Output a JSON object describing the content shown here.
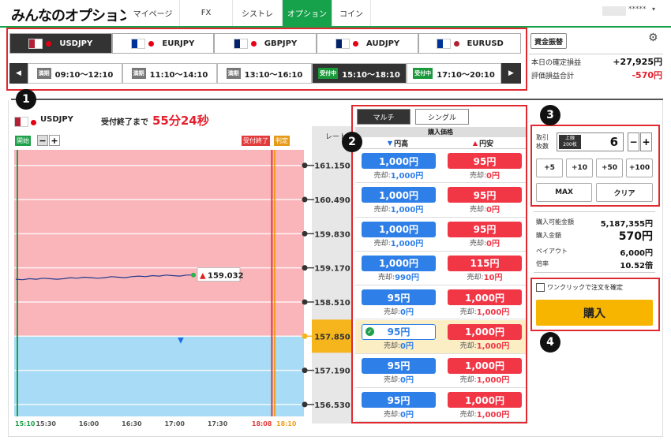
{
  "header": {
    "logo": "みんなのオプション",
    "nav": [
      "マイページ",
      "FX",
      "シストレ",
      "オプション",
      "コイン"
    ],
    "active_nav": 3,
    "user": "*****"
  },
  "currency_tabs": {
    "items": [
      "USDJPY",
      "EURJPY",
      "GBPJPY",
      "AUDJPY",
      "EURUSD"
    ],
    "active": 0
  },
  "time_slots": {
    "active": 3,
    "items": [
      {
        "status": "満期",
        "time": "09:10〜12:10"
      },
      {
        "status": "満期",
        "time": "11:10〜14:10"
      },
      {
        "status": "満期",
        "time": "13:10〜16:10"
      },
      {
        "status": "受付中",
        "time": "15:10〜18:10"
      },
      {
        "status": "受付中",
        "time": "17:10〜20:10"
      }
    ]
  },
  "account": {
    "transfer_button": "資金振替",
    "rows": [
      {
        "label": "本日の確定損益",
        "value": "+27,925円"
      },
      {
        "label": "評価損益合計",
        "value": "-570円"
      }
    ]
  },
  "callouts": [
    1,
    2,
    3,
    4
  ],
  "chart": {
    "symbol": "USDJPY",
    "countdown_label": "受付終了まで",
    "countdown": "55分24秒",
    "start_label": "開始",
    "zoom_out": "−",
    "zoom_in": "+",
    "close_label": "受付終了",
    "judge_label": "判定",
    "rate_header": "レート",
    "ylim": [
      156.3,
      161.45
    ],
    "rates": [
      {
        "value": 161.15,
        "label": "161.150"
      },
      {
        "value": 160.49,
        "label": "160.490"
      },
      {
        "value": 159.83,
        "label": "159.830"
      },
      {
        "value": 159.17,
        "label": "159.170"
      },
      {
        "value": 158.51,
        "label": "158.510"
      },
      {
        "value": 157.85,
        "label": "157.850"
      },
      {
        "value": 157.19,
        "label": "157.190"
      },
      {
        "value": 156.53,
        "label": "156.530"
      }
    ],
    "active_rate": 5,
    "current_price": 159.032,
    "price_line": [
      158.95,
      158.94,
      158.96,
      158.95,
      158.97,
      158.96,
      158.95,
      158.96,
      158.98,
      158.97,
      158.99,
      158.98,
      158.97,
      158.98,
      159.0,
      158.99,
      158.98,
      159.0,
      159.01,
      159.0,
      159.02,
      159.01,
      159.03,
      159.02,
      159.01,
      159.03,
      159.032
    ],
    "x_labels": [
      "15:10",
      "15:30",
      "16:00",
      "16:30",
      "17:00",
      "17:30",
      "18:08",
      "18:10"
    ]
  },
  "orders": {
    "tabs": [
      "マルチ",
      "シングル"
    ],
    "active_tab": 0,
    "header": "購入価格",
    "high_label": "円高",
    "low_label": "円安",
    "sell_label": "売却:",
    "selected_row": 5,
    "rows": [
      {
        "high": "1,000円",
        "high_sell": "1,000円",
        "low": "95円",
        "low_sell": "0円"
      },
      {
        "high": "1,000円",
        "high_sell": "1,000円",
        "low": "95円",
        "low_sell": "0円"
      },
      {
        "high": "1,000円",
        "high_sell": "1,000円",
        "low": "95円",
        "low_sell": "0円"
      },
      {
        "high": "1,000円",
        "high_sell": "990円",
        "low": "115円",
        "low_sell": "10円"
      },
      {
        "high": "95円",
        "high_sell": "0円",
        "low": "1,000円",
        "low_sell": "1,000円"
      },
      {
        "high": "95円",
        "high_sell": "0円",
        "low": "1,000円",
        "low_sell": "1,000円"
      },
      {
        "high": "95円",
        "high_sell": "0円",
        "low": "1,000円",
        "low_sell": "1,000円"
      },
      {
        "high": "95円",
        "high_sell": "0円",
        "low": "1,000円",
        "low_sell": "1,000円"
      }
    ]
  },
  "order_panel": {
    "qty_label": [
      "取引",
      "枚数"
    ],
    "limit": [
      "上限",
      "200枚"
    ],
    "qty": 6,
    "minus": "−",
    "plus": "+",
    "increments": [
      "+5",
      "+10",
      "+50",
      "+100"
    ],
    "max": "MAX",
    "clear": "クリア",
    "summary": [
      {
        "label": "購入可能金額",
        "value": "5,187,355円"
      },
      {
        "label": "購入金額",
        "value": "570円"
      },
      {
        "label": "ペイアウト",
        "value": "6,000円"
      },
      {
        "label": "倍率",
        "value": "10.52倍"
      }
    ],
    "one_click": "ワンクリックで注文を確定",
    "buy": "購入"
  }
}
